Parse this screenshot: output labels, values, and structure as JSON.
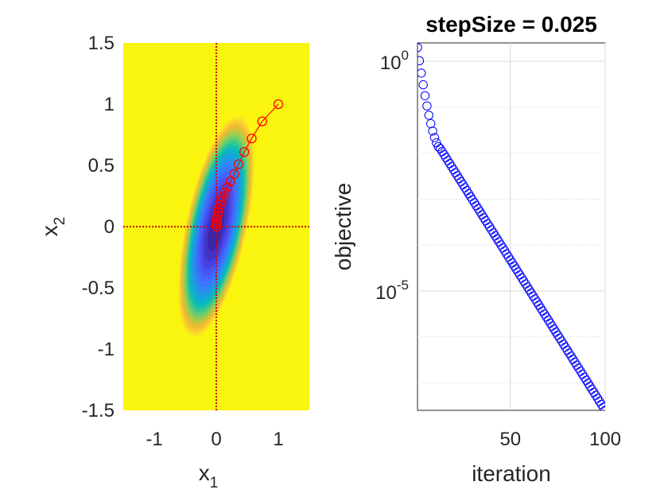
{
  "chart_data": [
    {
      "type": "contour",
      "title": "",
      "xlabel": {
        "base": "x",
        "sub": "1"
      },
      "ylabel": {
        "base": "x",
        "sub": "2"
      },
      "xlim": [
        -1.5,
        1.5
      ],
      "ylim": [
        -1.5,
        1.5
      ],
      "xticks": [
        -1,
        0,
        1
      ],
      "xtick_labels": [
        "-1",
        "0",
        "1"
      ],
      "yticks": [
        -1.5,
        -1,
        -0.5,
        0,
        0.5,
        1,
        1.5
      ],
      "ytick_labels": [
        "-1.5",
        "-1",
        "-0.5",
        "0",
        "0.5",
        "1",
        "1.5"
      ],
      "colormap": "parula",
      "path_color": "#ff0000",
      "crosshair_color": "#cc0000",
      "path": {
        "x": [
          1.0,
          0.74,
          0.57,
          0.45,
          0.36,
          0.29,
          0.23,
          0.18,
          0.14,
          0.11,
          0.08,
          0.06,
          0.045,
          0.03,
          0.02,
          0.012,
          0.006,
          0.002,
          0.0
        ],
        "y": [
          1.0,
          0.86,
          0.72,
          0.61,
          0.51,
          0.43,
          0.37,
          0.32,
          0.28,
          0.24,
          0.21,
          0.18,
          0.15,
          0.12,
          0.09,
          0.065,
          0.04,
          0.02,
          0.0
        ]
      }
    },
    {
      "type": "scatter",
      "title": "stepSize = 0.025",
      "xlabel": "iteration",
      "ylabel": "objective",
      "xlim": [
        1,
        100
      ],
      "ylim_log10": [
        -7.6,
        0.4
      ],
      "yscale": "log",
      "xticks": [
        50,
        100
      ],
      "xtick_labels": [
        "50",
        "100"
      ],
      "yticks_log10": [
        0,
        -5
      ],
      "ytick_labels": [
        {
          "base": "10",
          "exp": "0"
        },
        {
          "base": "10",
          "exp": "-5"
        }
      ],
      "grid": true,
      "marker_color": "#0000ff",
      "series_rule": {
        "n": 100,
        "log10_start": 0.3,
        "log10_kink": -1.9,
        "kink_iteration": 13,
        "log10_end": -7.6
      }
    }
  ]
}
